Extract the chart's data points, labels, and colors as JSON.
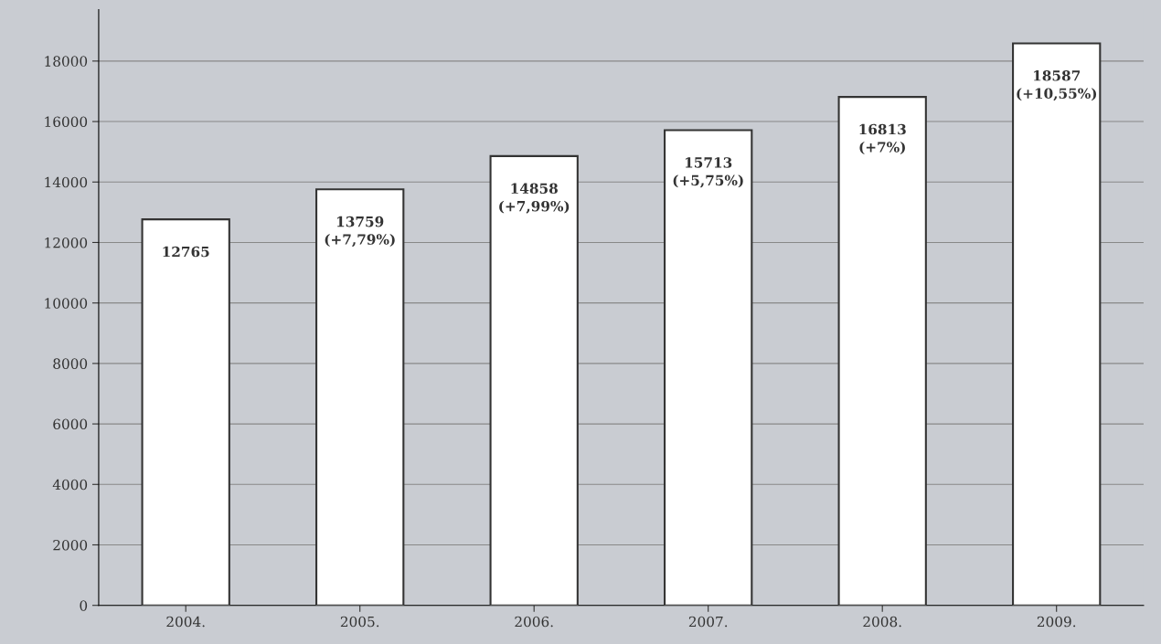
{
  "chart_data": {
    "type": "bar",
    "categories": [
      "2004.",
      "2005.",
      "2006.",
      "2007.",
      "2008.",
      "2009."
    ],
    "values": [
      12765,
      13759,
      14858,
      15713,
      16813,
      18587
    ],
    "value_labels": [
      "12765",
      "13759\n(+7,79%)",
      "14858\n(+7,99%)",
      "15713\n(+5,75%)",
      "16813\n(+7%)",
      "18587\n(+10,55%)"
    ],
    "color": "#ffffff",
    "ylim": [
      0,
      19700
    ],
    "yticks": [
      0,
      2000,
      4000,
      6000,
      8000,
      10000,
      12000,
      14000,
      16000,
      18000
    ],
    "grid": "y"
  }
}
